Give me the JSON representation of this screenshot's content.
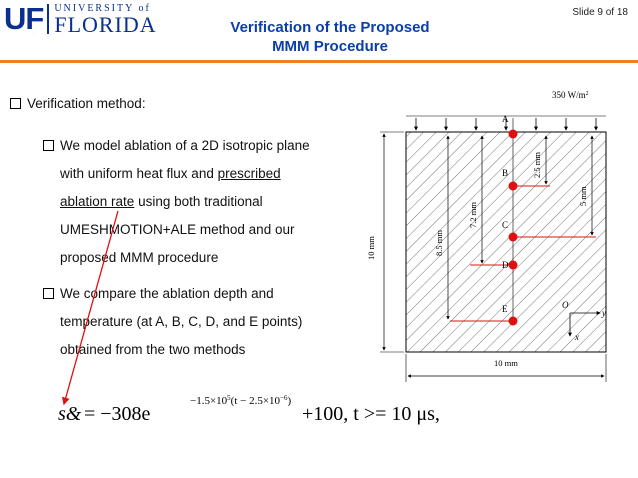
{
  "header": {
    "logo_uf": "UF",
    "logo_university": "UNIVERSITY of",
    "logo_florida": "FLORIDA",
    "title_line1": "Verification of the Proposed",
    "title_line2": "MMM Procedure",
    "slide_number": "Slide 9 of 18"
  },
  "content": {
    "bullet1": "Verification method:",
    "sub1_line1": "We model ablation of a 2D isotropic plane",
    "sub1_line2_pre": "with uniform heat flux and ",
    "sub1_line2_ul": "prescribed",
    "sub1_line3_ul": "ablation rate",
    "sub1_line3_post": " using both traditional",
    "sub1_line4": "UMESHMOTION+ALE method and our",
    "sub1_line5": "proposed MMM procedure",
    "sub2_line1": "We compare the ablation depth and",
    "sub2_line2": "temperature (at A, B, C, D, and E points)",
    "sub2_line3": "obtained from the two methods"
  },
  "diagram": {
    "heat_flux": "350 W/m",
    "heat_flux_sup": "2",
    "points": [
      "A",
      "B",
      "C",
      "D",
      "E"
    ],
    "dim_width": "10 mm",
    "dim_height": "10 mm",
    "dim_2_5": "2.5 mm",
    "dim_5": "5 mm",
    "dim_7_2": "7.2 mm",
    "dim_8_5": "8.5 mm",
    "origin": "O",
    "axis_x": "x",
    "axis_y": "y"
  },
  "formula": {
    "lhs": "s&",
    "eq": "= −308e",
    "exponent": "−1.5×10",
    "exponent_sup": "5",
    "exponent_paren": "(t − 2.5×10",
    "exponent_paren_sup": "−6",
    "exponent_close": ")",
    "tail": "+100,   t >= 10 μs,"
  },
  "colors": {
    "title": "#0b3ea8",
    "accent_bar": "#f08020",
    "logo": "#0b2f8c",
    "points": "#e01010",
    "arrow": "#e01010"
  }
}
